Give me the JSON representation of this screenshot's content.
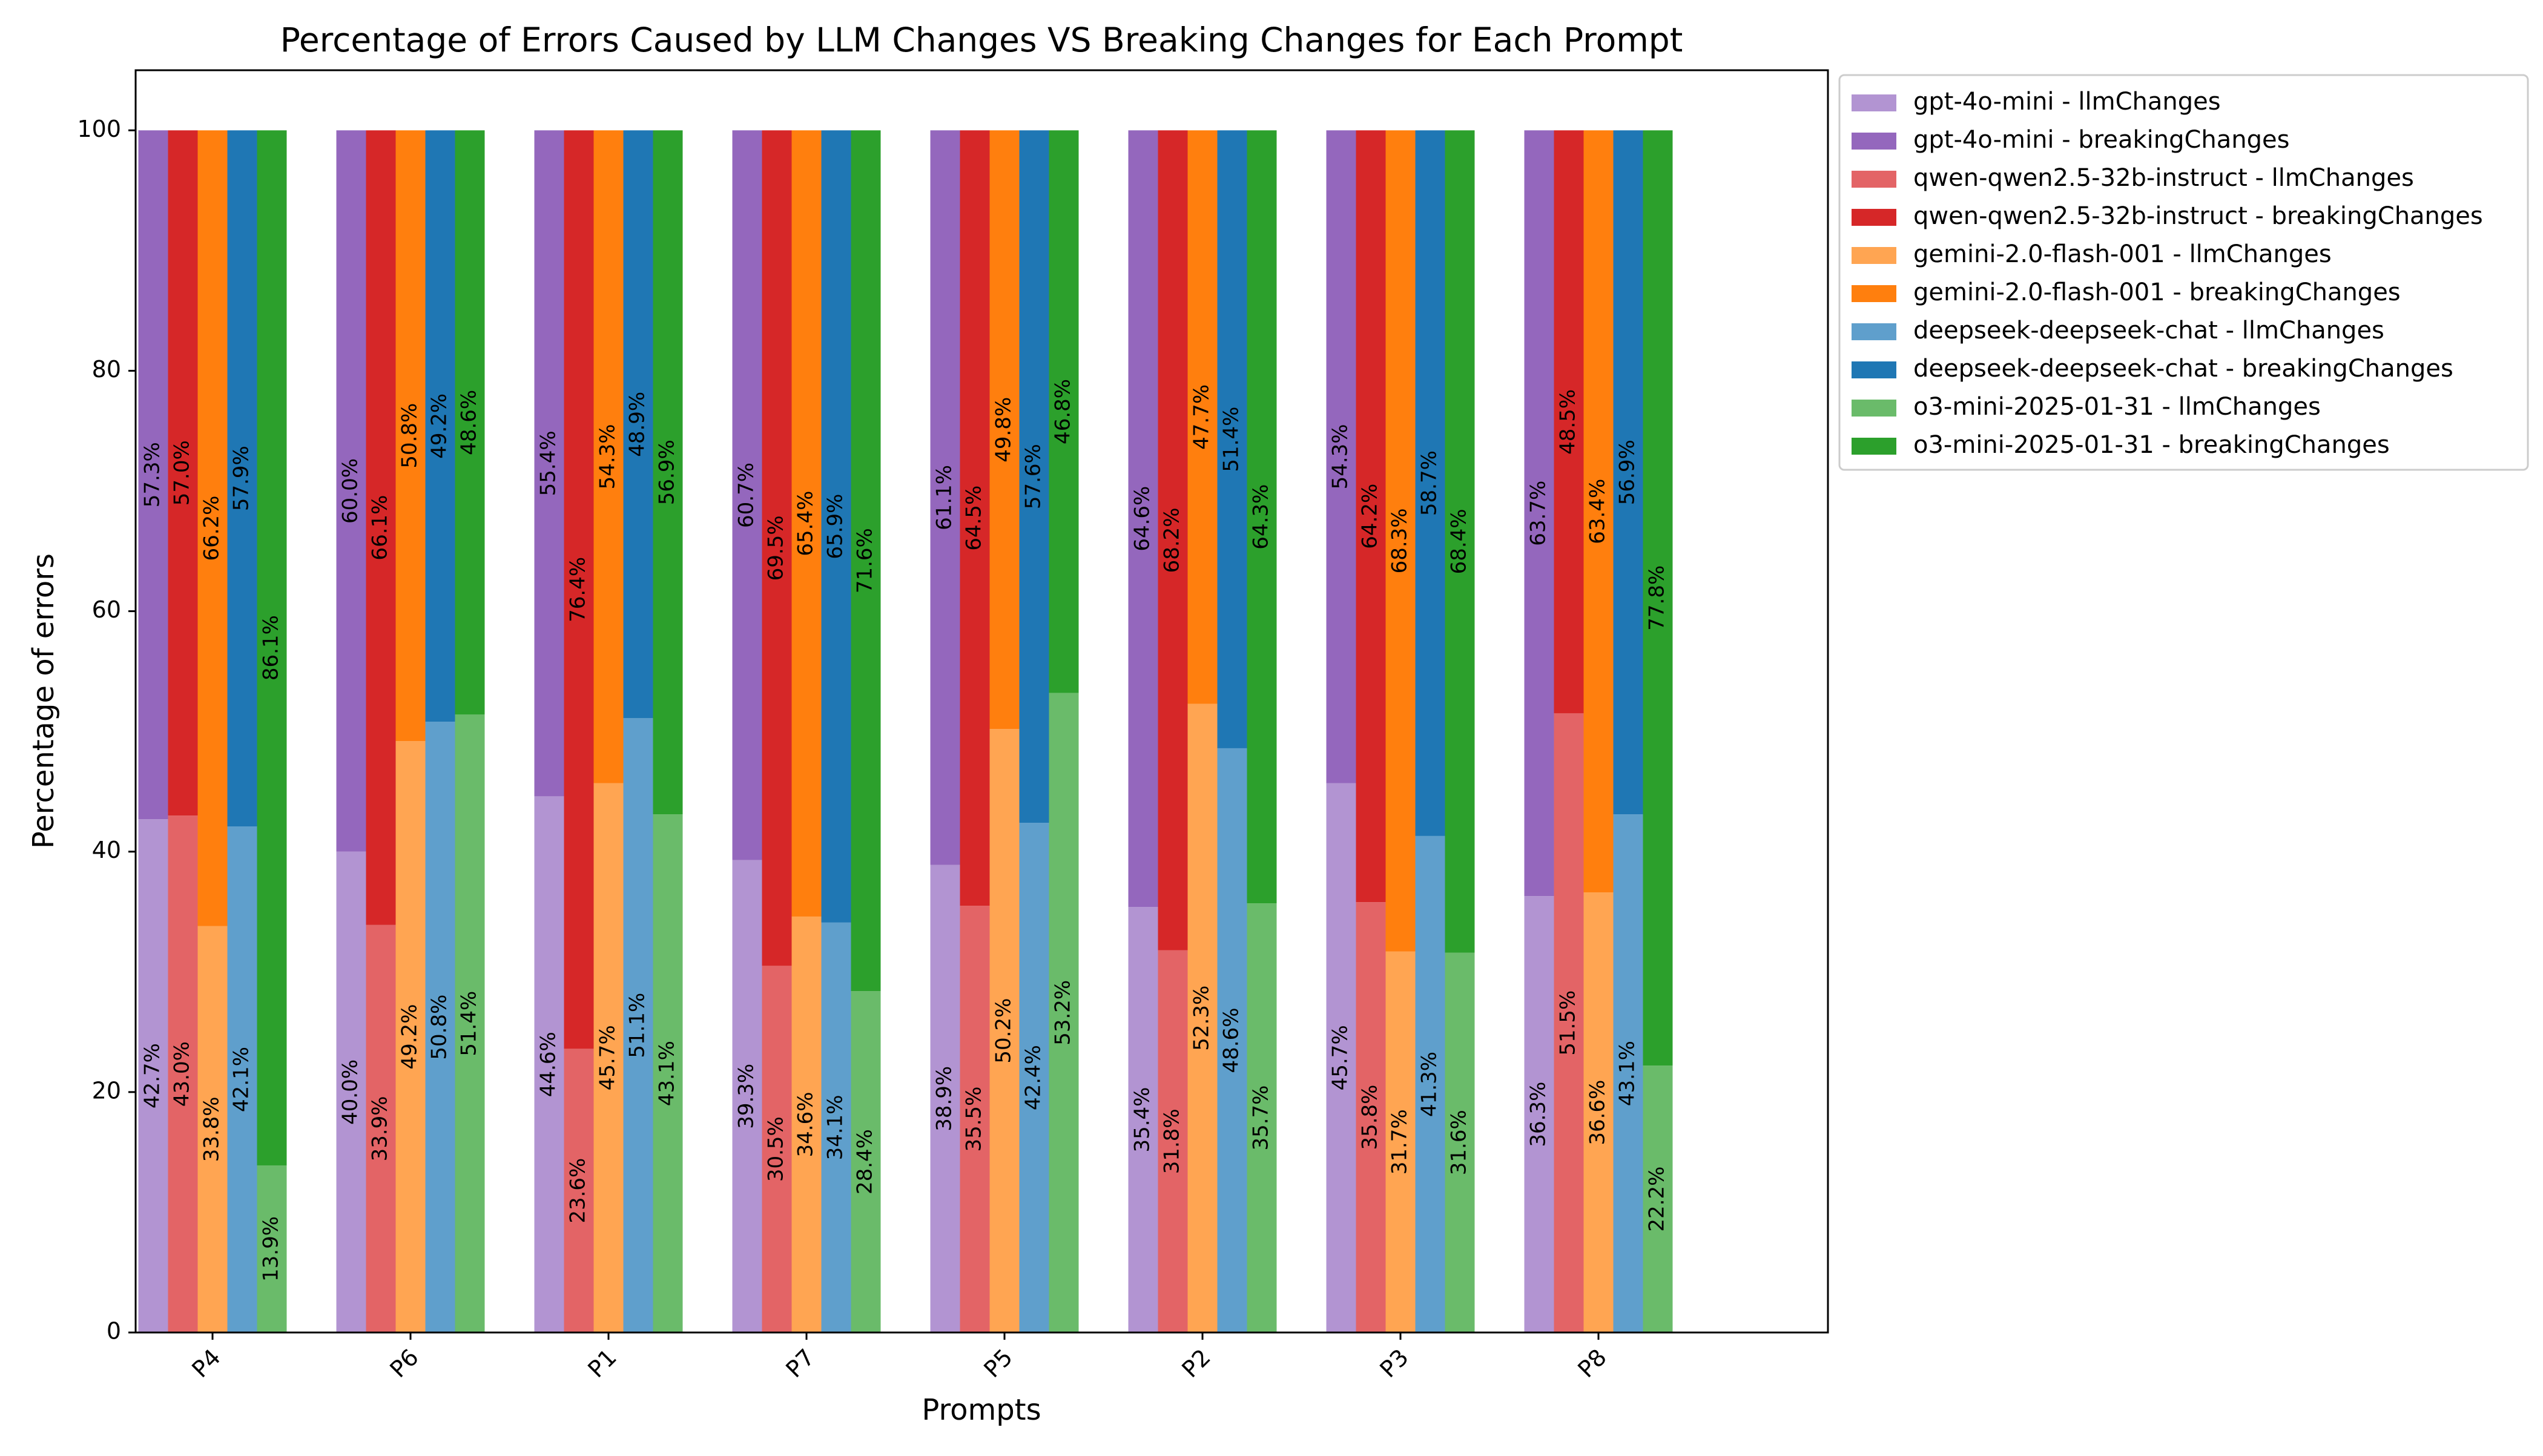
{
  "chart_data": {
    "type": "bar",
    "subtype": "stacked-grouped-percent",
    "title": "Percentage of Errors Caused by LLM Changes VS Breaking Changes for Each Prompt",
    "xlabel": "Prompts",
    "ylabel": "Percentage of errors",
    "ylim": [
      0,
      105
    ],
    "yticks": [
      0,
      20,
      40,
      60,
      80,
      100
    ],
    "grid": false,
    "legend_position": "outside-top-right",
    "categories": [
      "P4",
      "P6",
      "P1",
      "P7",
      "P5",
      "P2",
      "P3",
      "P8"
    ],
    "models": [
      {
        "name": "gpt-4o-mini",
        "llm_label": "gpt-4o-mini - llmChanges",
        "breaking_label": "gpt-4o-mini - breakingChanges",
        "llm_color": "#b294d2",
        "breaking_color": "#9467bd",
        "llmChanges": [
          42.7,
          40.0,
          44.6,
          39.3,
          38.9,
          35.4,
          45.7,
          36.3
        ],
        "breakingChanges": [
          57.3,
          60.0,
          55.4,
          60.7,
          61.1,
          64.6,
          54.3,
          63.7
        ],
        "llm_text": [
          "42.7%",
          "40.0%",
          "44.6%",
          "39.3%",
          "38.9%",
          "35.4%",
          "45.7%",
          "36.3%"
        ],
        "breaking_text": [
          "57.3%",
          "60.0%",
          "55.4%",
          "60.7%",
          "61.1%",
          "64.6%",
          "54.3%",
          "63.7%"
        ]
      },
      {
        "name": "qwen-qwen2.5-32b-instruct",
        "llm_label": "qwen-qwen2.5-32b-instruct - llmChanges",
        "breaking_label": "qwen-qwen2.5-32b-instruct - breakingChanges",
        "llm_color": "#e36466",
        "breaking_color": "#d62728",
        "llmChanges": [
          43.0,
          33.9,
          23.6,
          30.5,
          35.5,
          31.8,
          35.8,
          51.5
        ],
        "breakingChanges": [
          57.0,
          66.1,
          76.4,
          69.5,
          64.5,
          68.2,
          64.2,
          48.5
        ],
        "llm_text": [
          "43.0%",
          "33.9%",
          "23.6%",
          "30.5%",
          "35.5%",
          "31.8%",
          "35.8%",
          "51.5%"
        ],
        "breaking_text": [
          "57.0%",
          "66.1%",
          "76.4%",
          "69.5%",
          "64.5%",
          "68.2%",
          "64.2%",
          "48.5%"
        ]
      },
      {
        "name": "gemini-2.0-flash-001",
        "llm_label": "gemini-2.0-flash-001 - llmChanges",
        "breaking_label": "gemini-2.0-flash-001 - breakingChanges",
        "llm_color": "#ffa552",
        "breaking_color": "#ff7f0e",
        "llmChanges": [
          33.8,
          49.2,
          45.7,
          34.6,
          50.2,
          52.3,
          31.7,
          36.6
        ],
        "breakingChanges": [
          66.2,
          50.8,
          54.3,
          65.4,
          49.8,
          47.7,
          68.3,
          63.4
        ],
        "llm_text": [
          "33.8%",
          "49.2%",
          "45.7%",
          "34.6%",
          "50.2%",
          "52.3%",
          "31.7%",
          "36.6%"
        ],
        "breaking_text": [
          "66.2%",
          "50.8%",
          "54.3%",
          "65.4%",
          "49.8%",
          "47.7%",
          "68.3%",
          "63.4%"
        ]
      },
      {
        "name": "deepseek-deepseek-chat",
        "llm_label": "deepseek-deepseek-chat - llmChanges",
        "breaking_label": "deepseek-deepseek-chat - breakingChanges",
        "llm_color": "#5f9fcc",
        "breaking_color": "#1f77b4",
        "llmChanges": [
          42.1,
          50.8,
          51.1,
          34.1,
          42.4,
          48.6,
          41.3,
          43.1
        ],
        "breakingChanges": [
          57.9,
          49.2,
          48.9,
          65.9,
          57.6,
          51.4,
          58.7,
          56.9
        ],
        "llm_text": [
          "42.1%",
          "50.8%",
          "51.1%",
          "34.1%",
          "42.4%",
          "48.6%",
          "41.3%",
          "43.1%"
        ],
        "breaking_text": [
          "57.9%",
          "49.2%",
          "48.9%",
          "65.9%",
          "57.6%",
          "51.4%",
          "58.7%",
          "56.9%"
        ]
      },
      {
        "name": "o3-mini-2025-01-31",
        "llm_label": "o3-mini-2025-01-31 - llmChanges",
        "breaking_label": "o3-mini-2025-01-31 - breakingChanges",
        "llm_color": "#6abb6a",
        "breaking_color": "#2ca02c",
        "llmChanges": [
          13.9,
          51.4,
          43.1,
          28.4,
          53.2,
          35.7,
          31.6,
          22.2
        ],
        "breakingChanges": [
          86.1,
          48.6,
          56.9,
          71.6,
          46.8,
          64.3,
          68.4,
          77.8
        ],
        "llm_text": [
          "13.9%",
          "51.4%",
          "43.1%",
          "28.4%",
          "53.2%",
          "35.7%",
          "31.6%",
          "22.2%"
        ],
        "breaking_text": [
          "86.1%",
          "48.6%",
          "56.9%",
          "71.6%",
          "46.8%",
          "64.3%",
          "68.4%",
          "77.8%"
        ]
      }
    ]
  }
}
